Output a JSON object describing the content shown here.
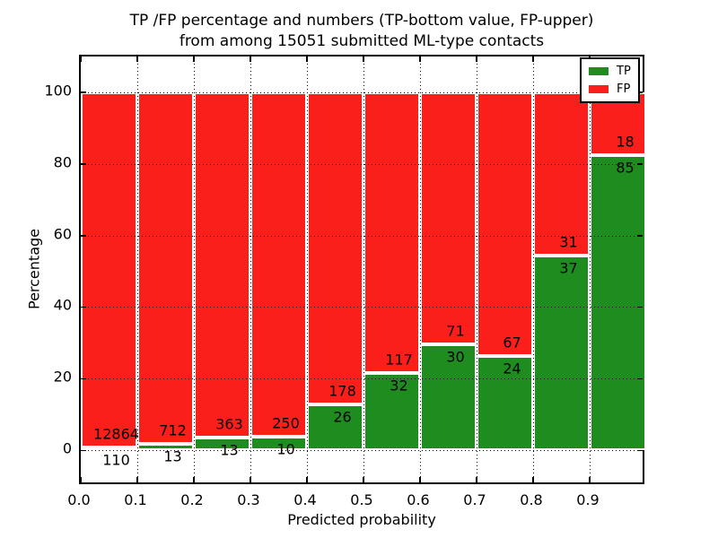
{
  "figure": {
    "title_line1": "TP /FP percentage and numbers (TP-bottom value, FP-upper)",
    "title_line2": "from among 15051 submitted ML-type contacts"
  },
  "chart_data": {
    "type": "bar",
    "stacked": true,
    "normalized": "each bin scaled to 100 percent, green TP fraction on bottom, red FP fraction on top",
    "title": "TP /FP percentage and numbers (TP-bottom value, FP-upper) from among 15051 submitted ML-type contacts",
    "xlabel": "Predicted probability",
    "ylabel": "Percentage",
    "xlim": [
      0.0,
      1.0
    ],
    "ylim": [
      -10,
      110
    ],
    "xticks": [
      "0.0",
      "0.1",
      "0.2",
      "0.3",
      "0.4",
      "0.5",
      "0.6",
      "0.7",
      "0.8",
      "0.9"
    ],
    "yticks": [
      0,
      20,
      40,
      60,
      80,
      100
    ],
    "grid": "dotted black, drawn over bars",
    "bin_edges": [
      0.0,
      0.1,
      0.2,
      0.3,
      0.4,
      0.5,
      0.6,
      0.7,
      0.8,
      0.9,
      1.0
    ],
    "total_contacts": 15051,
    "bar_edge_color": "#ffffff",
    "series": [
      {
        "name": "TP",
        "color": "#1e8c1e",
        "counts": [
          110,
          13,
          13,
          10,
          26,
          32,
          30,
          24,
          37,
          85
        ]
      },
      {
        "name": "FP",
        "color": "#fa1f1a",
        "counts": [
          12864,
          712,
          363,
          250,
          178,
          117,
          71,
          67,
          31,
          18
        ]
      }
    ],
    "tp_percentages": [
      0.85,
      1.79,
      3.46,
      3.85,
      12.75,
      21.48,
      29.7,
      26.37,
      54.41,
      82.52
    ],
    "legend": {
      "position": "upper right",
      "entries": [
        {
          "label": "TP",
          "color": "#1e8c1e"
        },
        {
          "label": "FP",
          "color": "#fa1f1a"
        }
      ]
    }
  }
}
